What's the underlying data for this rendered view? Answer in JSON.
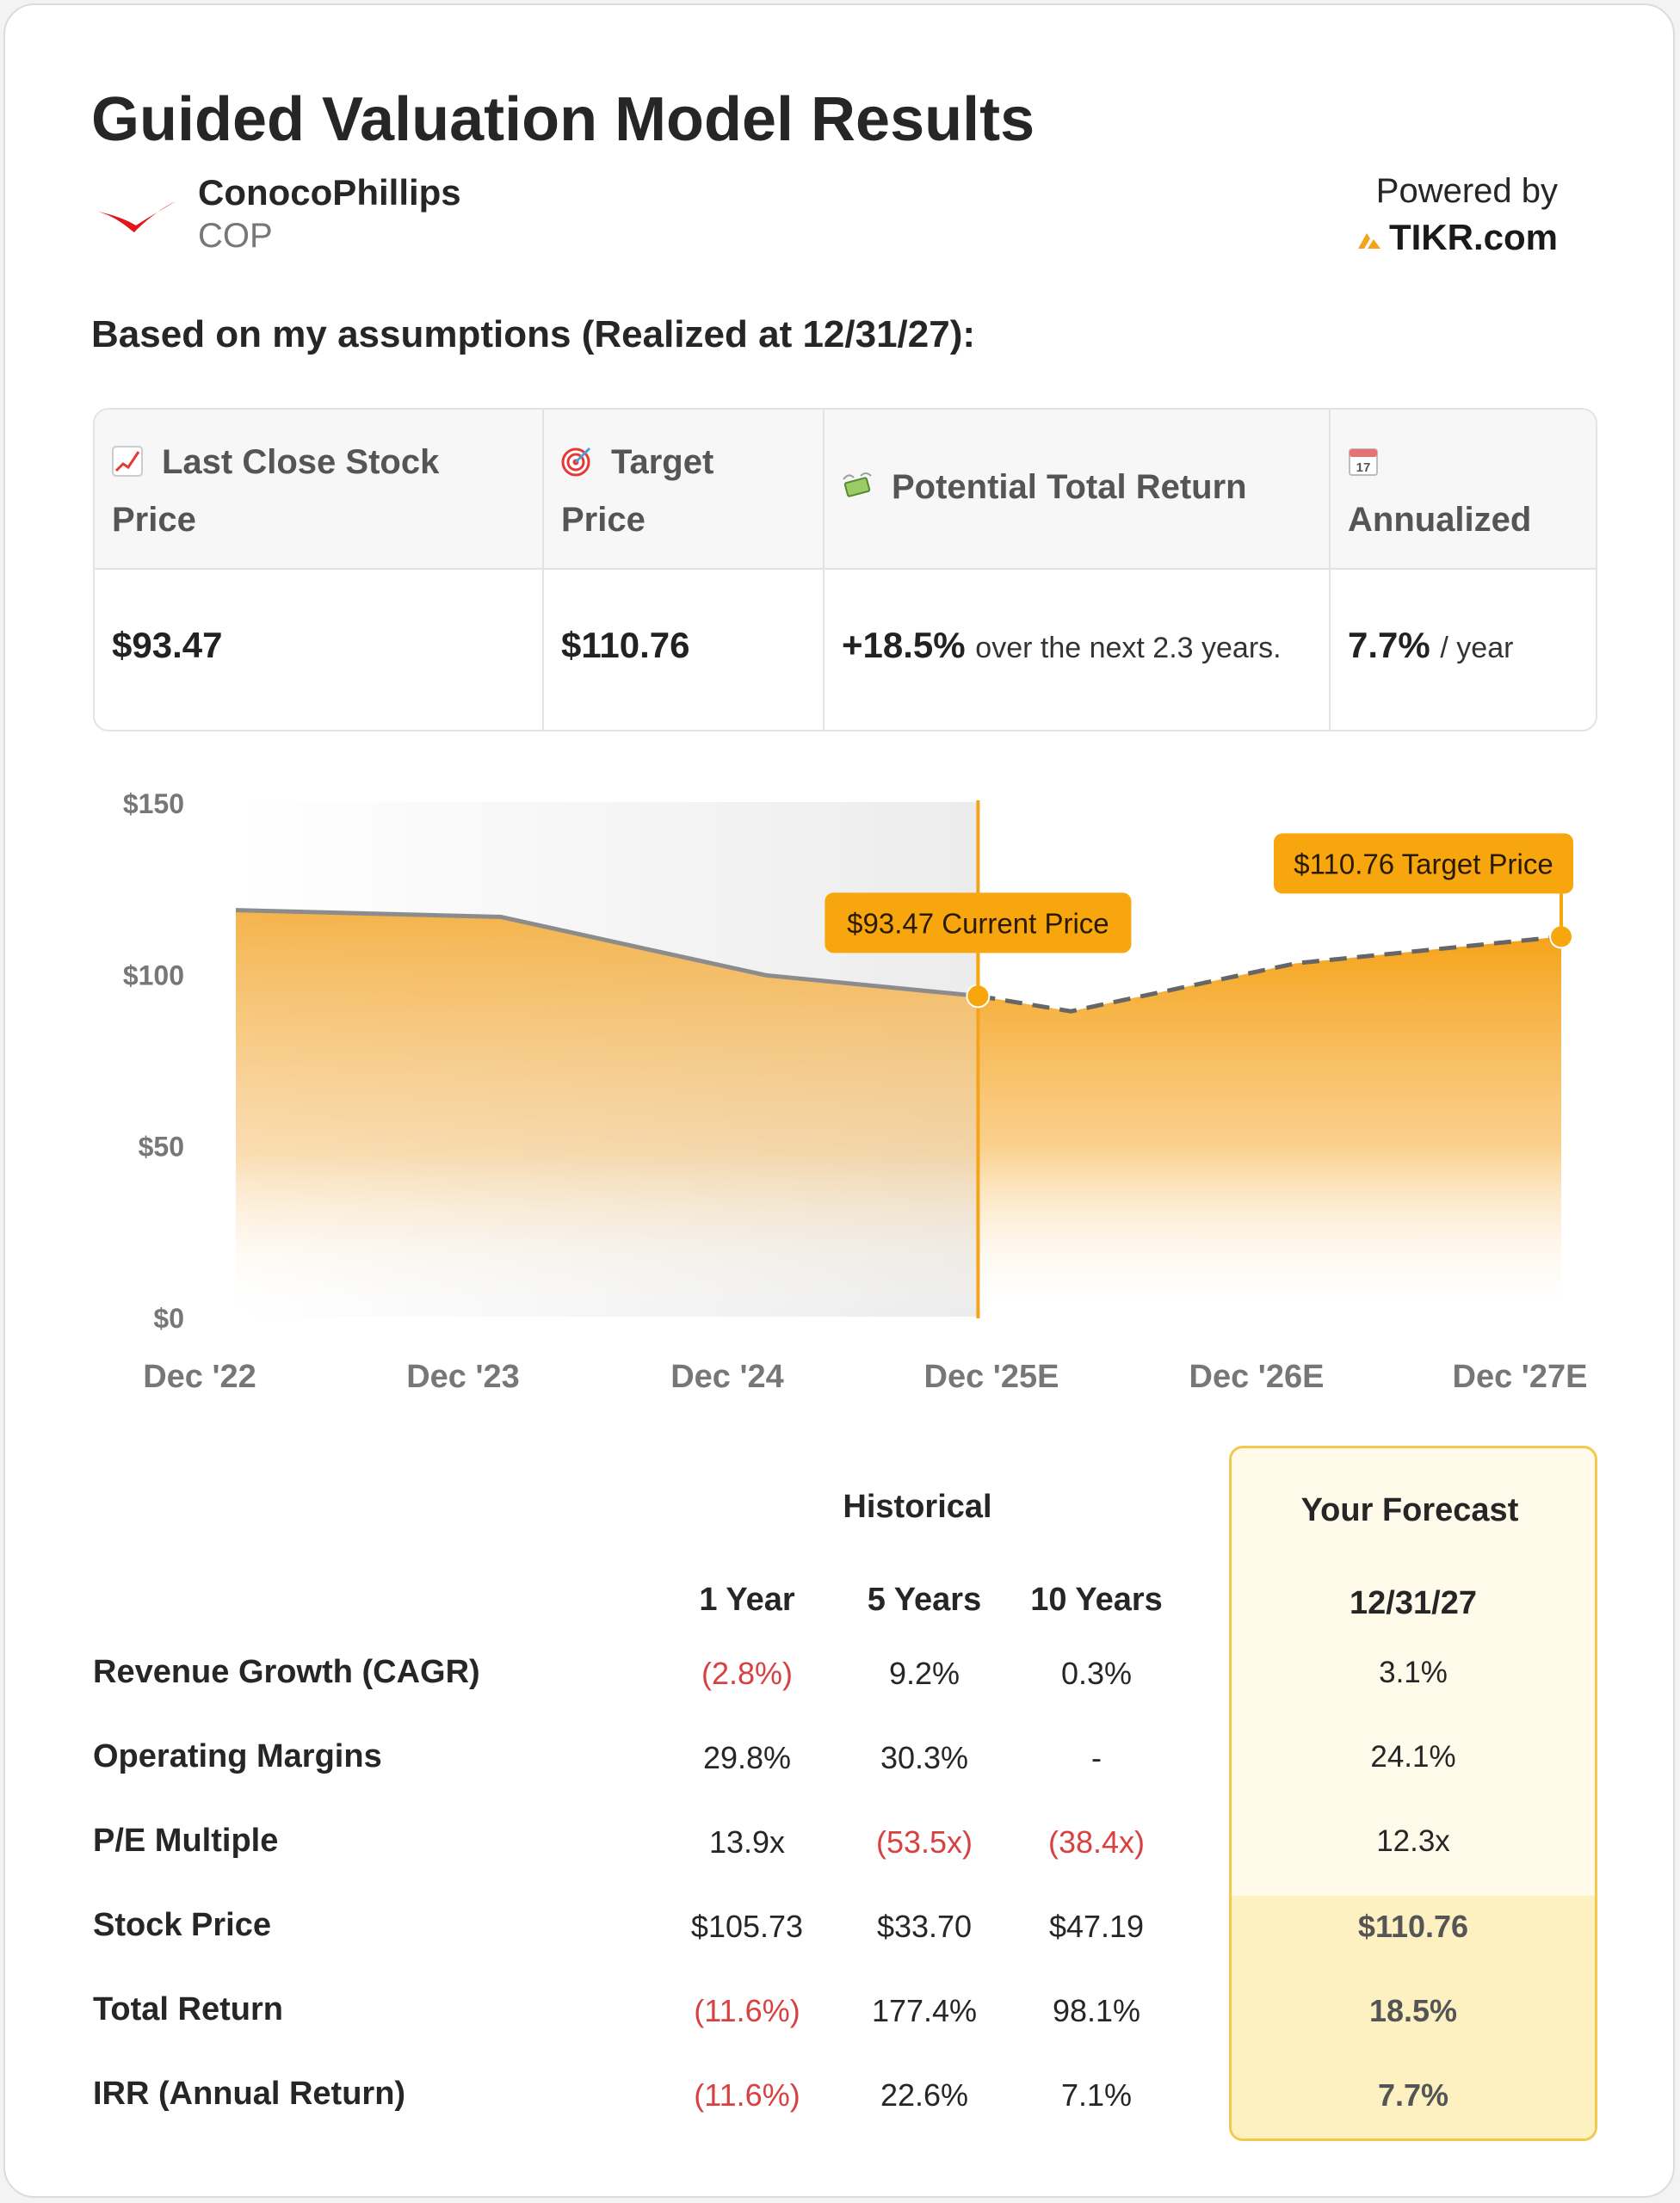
{
  "header": {
    "title": "Guided Valuation Model Results",
    "company_name": "ConocoPhillips",
    "ticker": "COP",
    "powered_by": "Powered by",
    "provider": "TIKR.com",
    "assumption_text": "Based on my assumptions (Realized at 12/31/27):"
  },
  "summary": {
    "last_close_label": "Last Close Stock Price",
    "last_close_value": "$93.47",
    "target_label": "Target Price",
    "target_value": "$110.76",
    "total_return_label": "Potential Total Return",
    "total_return_value": "+18.5%",
    "total_return_sub": "over the next 2.3 years.",
    "annualized_label": "Annualized",
    "annualized_value": "7.7%",
    "annualized_sub": "/ year",
    "calendar_day": "17"
  },
  "colors": {
    "accent": "#f5a31a",
    "callout": "#f7a70d",
    "historical_line": "#8c8c8c",
    "negative": "#d94040",
    "forecast_border": "#f2c94c"
  },
  "chart_data": {
    "type": "area",
    "categories": [
      "Dec '22",
      "Dec '23",
      "Dec '24",
      "Dec '25E",
      "Dec '26E",
      "Dec '27E"
    ],
    "ylim": [
      0,
      150
    ],
    "y_ticks": [
      "$0",
      "$50",
      "$100",
      "$150"
    ],
    "y_tick_values": [
      0,
      50,
      100,
      150
    ],
    "series": [
      {
        "name": "Historical",
        "x": [
          0,
          1,
          2,
          2.8
        ],
        "values": [
          118.5,
          116.5,
          99.5,
          93.47
        ],
        "style": "solid"
      },
      {
        "name": "Forecast",
        "x": [
          2.8,
          3.15,
          4,
          5
        ],
        "values": [
          93.47,
          89,
          103,
          110.76
        ],
        "style": "dashed"
      }
    ],
    "current_marker": {
      "x": 2.8,
      "value": 93.47,
      "label": "$93.47 Current Price"
    },
    "target_marker": {
      "x": 5,
      "value": 110.76,
      "label": "$110.76 Target Price"
    }
  },
  "table": {
    "historical_header": "Historical",
    "forecast_header": "Your Forecast",
    "columns": [
      "1 Year",
      "5 Years",
      "10 Years"
    ],
    "forecast_date": "12/31/27",
    "rows": [
      {
        "label": "Revenue Growth (CAGR)",
        "y1": "(2.8%)",
        "y5": "9.2%",
        "y10": "0.3%",
        "fc": "3.1%"
      },
      {
        "label": "Operating Margins",
        "y1": "29.8%",
        "y5": "30.3%",
        "y10": "-",
        "fc": "24.1%"
      },
      {
        "label": "P/E Multiple",
        "y1": "13.9x",
        "y5": "(53.5x)",
        "y10": "(38.4x)",
        "fc": "12.3x"
      },
      {
        "label": "Stock Price",
        "y1": "$105.73",
        "y5": "$33.70",
        "y10": "$47.19",
        "fc": "$110.76"
      },
      {
        "label": "Total Return",
        "y1": "(11.6%)",
        "y5": "177.4%",
        "y10": "98.1%",
        "fc": "18.5%"
      },
      {
        "label": "IRR (Annual Return)",
        "y1": "(11.6%)",
        "y5": "22.6%",
        "y10": "7.1%",
        "fc": "7.7%"
      }
    ]
  }
}
